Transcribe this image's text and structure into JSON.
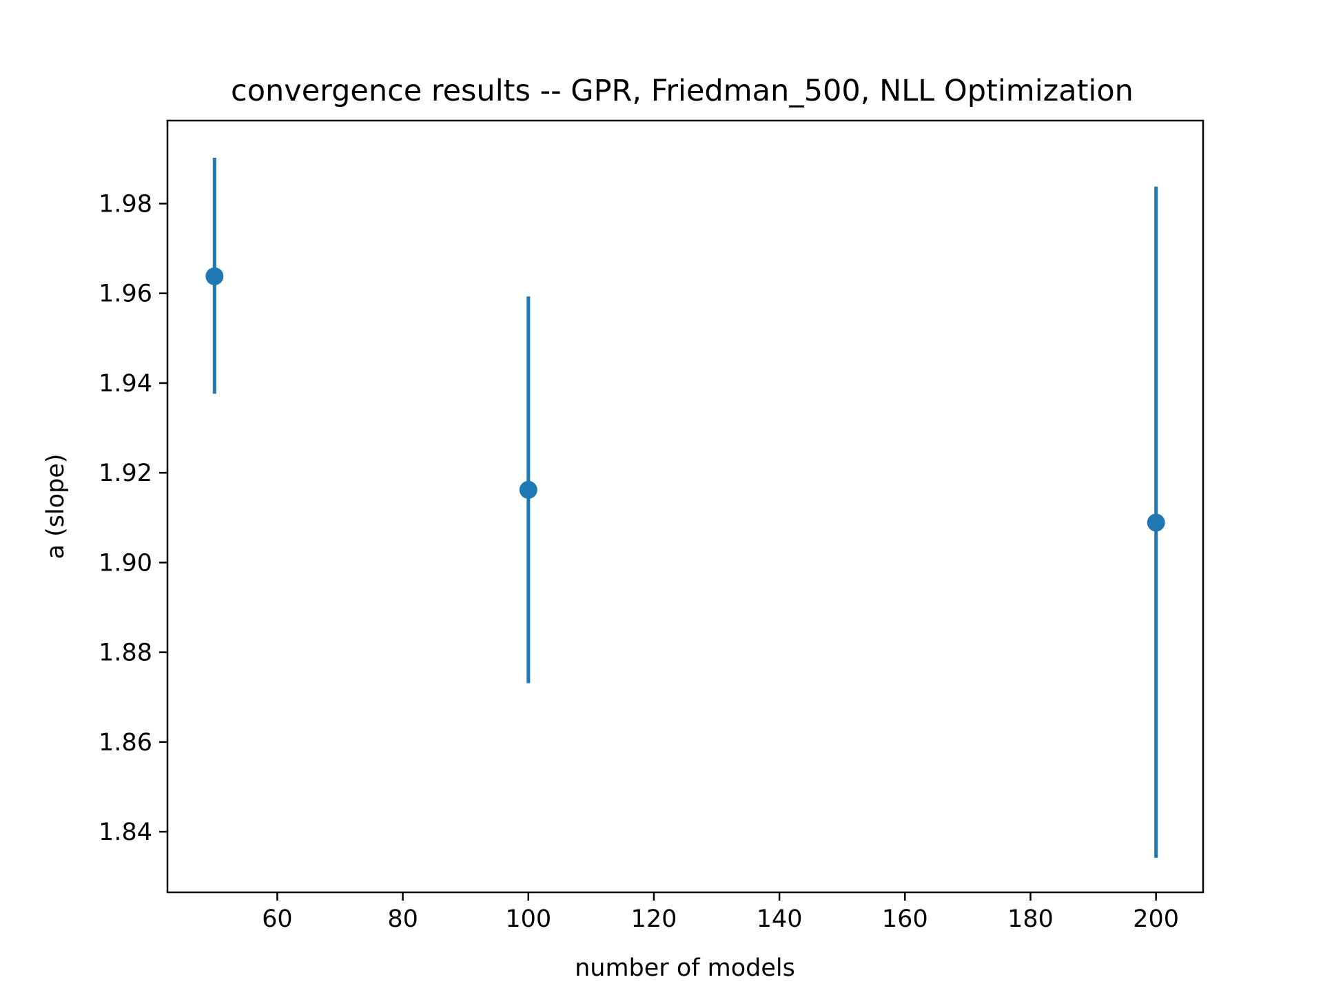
{
  "chart_data": {
    "type": "scatter",
    "title": "convergence results -- GPR, Friedman_500, NLL Optimization",
    "xlabel": "number of models",
    "ylabel": "a (slope)",
    "xlim": [
      42.5,
      207.5
    ],
    "ylim": [
      1.8265,
      1.9985
    ],
    "xticks": [
      60,
      80,
      100,
      120,
      140,
      160,
      180,
      200
    ],
    "yticks": [
      1.84,
      1.86,
      1.88,
      1.9,
      1.92,
      1.94,
      1.96,
      1.98
    ],
    "grid": false,
    "color": "#1f77b4",
    "series": [
      {
        "points": [
          {
            "x": 50,
            "y": 1.9638,
            "lo": 1.9376,
            "hi": 1.9902
          },
          {
            "x": 100,
            "y": 1.9162,
            "lo": 1.8731,
            "hi": 1.9593
          },
          {
            "x": 200,
            "y": 1.9089,
            "lo": 1.8342,
            "hi": 1.9838
          }
        ]
      }
    ]
  }
}
